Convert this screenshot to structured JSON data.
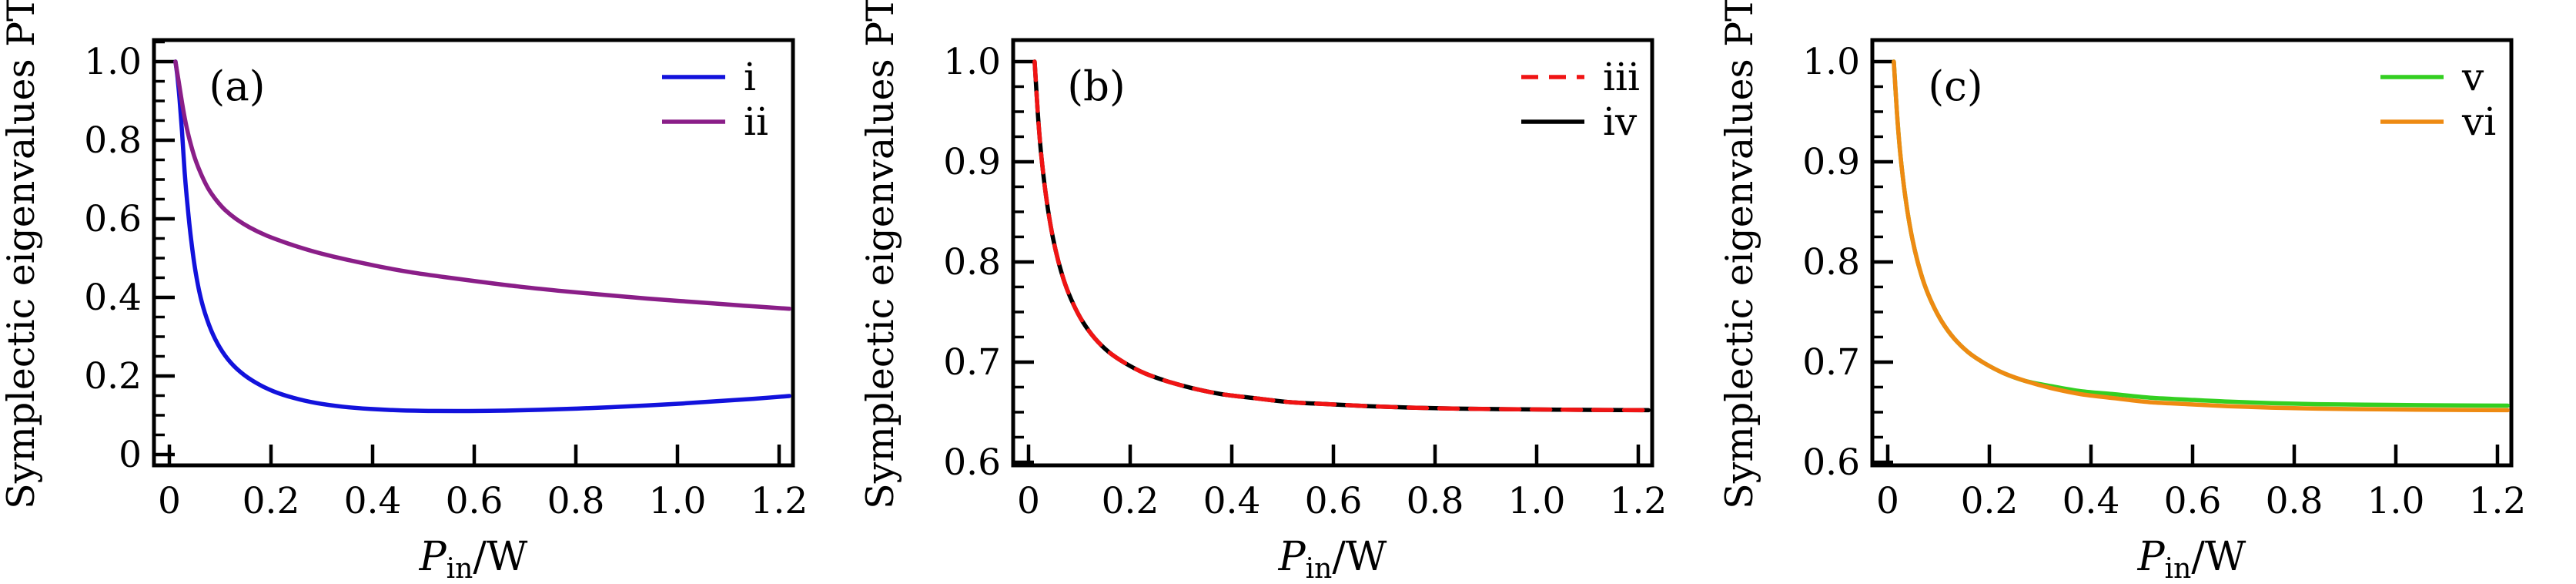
{
  "figure": {
    "background": "#ffffff",
    "axis_color": "#000000",
    "ylabel": "Symplectic eigenvalues PT",
    "xlabel": {
      "var": "P",
      "sub": "in",
      "rest": "/W"
    }
  },
  "chart_data": [
    {
      "type": "line",
      "panel_label": "(a)",
      "title": "",
      "xlabel": "P_in/W",
      "ylabel": "Symplectic eigenvalues PT",
      "xlim": [
        -0.0303,
        1.2273
      ],
      "ylim": [
        -0.0275,
        1.0549
      ],
      "xticks": [
        0,
        0.2,
        0.4,
        0.6,
        0.8,
        1.0,
        1.2
      ],
      "xtick_labels": [
        "0",
        "0.2",
        "0.4",
        "0.6",
        "0.8",
        "1.0",
        "1.2"
      ],
      "yticks": [
        0,
        0.2,
        0.4,
        0.6,
        0.8,
        1.0
      ],
      "ytick_labels": [
        "0",
        "0.2",
        "0.4",
        "0.6",
        "0.8",
        "1.0"
      ],
      "y_minor_step": 0.05,
      "y_minor_range": [
        0,
        1.05
      ],
      "grid": false,
      "legend_position": "top-right",
      "series": [
        {
          "name": "i",
          "color": "#1212dc",
          "dash": null,
          "z": 1,
          "points": [
            [
              0.012,
              1.0
            ],
            [
              0.016,
              0.96
            ],
            [
              0.02,
              0.905
            ],
            [
              0.025,
              0.82
            ],
            [
              0.03,
              0.72
            ],
            [
              0.036,
              0.63
            ],
            [
              0.043,
              0.545
            ],
            [
              0.052,
              0.462
            ],
            [
              0.063,
              0.392
            ],
            [
              0.078,
              0.33
            ],
            [
              0.095,
              0.282
            ],
            [
              0.115,
              0.243
            ],
            [
              0.14,
              0.21
            ],
            [
              0.17,
              0.183
            ],
            [
              0.205,
              0.161
            ],
            [
              0.245,
              0.144
            ],
            [
              0.29,
              0.131
            ],
            [
              0.34,
              0.122
            ],
            [
              0.395,
              0.116
            ],
            [
              0.455,
              0.1125
            ],
            [
              0.52,
              0.111
            ],
            [
              0.59,
              0.1108
            ],
            [
              0.66,
              0.1118
            ],
            [
              0.73,
              0.1138
            ],
            [
              0.8,
              0.1168
            ],
            [
              0.87,
              0.1205
            ],
            [
              0.94,
              0.125
            ],
            [
              1.01,
              0.13
            ],
            [
              1.08,
              0.136
            ],
            [
              1.15,
              0.142
            ],
            [
              1.22,
              0.149
            ]
          ]
        },
        {
          "name": "ii",
          "color": "#8a1e88",
          "dash": null,
          "z": 2,
          "points": [
            [
              0.012,
              1.0
            ],
            [
              0.018,
              0.952
            ],
            [
              0.025,
              0.895
            ],
            [
              0.032,
              0.845
            ],
            [
              0.04,
              0.8
            ],
            [
              0.05,
              0.755
            ],
            [
              0.062,
              0.715
            ],
            [
              0.076,
              0.678
            ],
            [
              0.092,
              0.648
            ],
            [
              0.11,
              0.622
            ],
            [
              0.132,
              0.599
            ],
            [
              0.158,
              0.578
            ],
            [
              0.19,
              0.558
            ],
            [
              0.225,
              0.541
            ],
            [
              0.265,
              0.524
            ],
            [
              0.31,
              0.508
            ],
            [
              0.36,
              0.493
            ],
            [
              0.415,
              0.478
            ],
            [
              0.475,
              0.464
            ],
            [
              0.54,
              0.452
            ],
            [
              0.61,
              0.44
            ],
            [
              0.685,
              0.428
            ],
            [
              0.765,
              0.417
            ],
            [
              0.85,
              0.407
            ],
            [
              0.94,
              0.397
            ],
            [
              1.035,
              0.388
            ],
            [
              1.13,
              0.379
            ],
            [
              1.22,
              0.371
            ]
          ]
        }
      ]
    },
    {
      "type": "line",
      "panel_label": "(b)",
      "title": "",
      "xlabel": "P_in/W",
      "ylabel": "Symplectic eigenvalues PT",
      "xlim": [
        -0.0303,
        1.2273
      ],
      "ylim": [
        0.5969,
        1.0215
      ],
      "xticks": [
        0,
        0.2,
        0.4,
        0.6,
        0.8,
        1.0,
        1.2
      ],
      "xtick_labels": [
        "0",
        "0.2",
        "0.4",
        "0.6",
        "0.8",
        "1.0",
        "1.2"
      ],
      "yticks": [
        0.6,
        0.7,
        0.8,
        0.9,
        1.0
      ],
      "ytick_labels": [
        "0.6",
        "0.7",
        "0.8",
        "0.9",
        "1.0"
      ],
      "y_minor_step": 0.025,
      "y_minor_range": [
        0.6,
        1.0
      ],
      "grid": false,
      "legend_position": "top-right",
      "series": [
        {
          "name": "iii",
          "color": "#f01414",
          "dash": "24 16",
          "z": 2,
          "points": [
            [
              0.012,
              1.0
            ],
            [
              0.018,
              0.95
            ],
            [
              0.024,
              0.912
            ],
            [
              0.031,
              0.879
            ],
            [
              0.039,
              0.85
            ],
            [
              0.048,
              0.824
            ],
            [
              0.059,
              0.8
            ],
            [
              0.072,
              0.778
            ],
            [
              0.088,
              0.758
            ],
            [
              0.107,
              0.74
            ],
            [
              0.13,
              0.724
            ],
            [
              0.158,
              0.71
            ],
            [
              0.19,
              0.699
            ],
            [
              0.228,
              0.689
            ],
            [
              0.272,
              0.681
            ],
            [
              0.322,
              0.674
            ],
            [
              0.38,
              0.668
            ],
            [
              0.445,
              0.664
            ],
            [
              0.515,
              0.66
            ],
            [
              0.59,
              0.658
            ],
            [
              0.67,
              0.656
            ],
            [
              0.755,
              0.6545
            ],
            [
              0.845,
              0.6535
            ],
            [
              0.94,
              0.653
            ],
            [
              1.04,
              0.6525
            ],
            [
              1.13,
              0.6522
            ],
            [
              1.22,
              0.652
            ]
          ]
        },
        {
          "name": "iv",
          "color": "#000000",
          "dash": null,
          "z": 1,
          "points": [
            [
              0.012,
              1.0
            ],
            [
              0.018,
              0.95
            ],
            [
              0.024,
              0.912
            ],
            [
              0.031,
              0.879
            ],
            [
              0.039,
              0.85
            ],
            [
              0.048,
              0.824
            ],
            [
              0.059,
              0.8
            ],
            [
              0.072,
              0.778
            ],
            [
              0.088,
              0.758
            ],
            [
              0.107,
              0.74
            ],
            [
              0.13,
              0.724
            ],
            [
              0.158,
              0.71
            ],
            [
              0.19,
              0.699
            ],
            [
              0.228,
              0.689
            ],
            [
              0.272,
              0.681
            ],
            [
              0.322,
              0.674
            ],
            [
              0.38,
              0.668
            ],
            [
              0.445,
              0.664
            ],
            [
              0.515,
              0.66
            ],
            [
              0.59,
              0.658
            ],
            [
              0.67,
              0.656
            ],
            [
              0.755,
              0.6545
            ],
            [
              0.845,
              0.6535
            ],
            [
              0.94,
              0.653
            ],
            [
              1.04,
              0.6525
            ],
            [
              1.13,
              0.6522
            ],
            [
              1.22,
              0.652
            ]
          ]
        }
      ]
    },
    {
      "type": "line",
      "panel_label": "(c)",
      "title": "",
      "xlabel": "P_in/W",
      "ylabel": "Symplectic eigenvalues PT",
      "xlim": [
        -0.0303,
        1.2273
      ],
      "ylim": [
        0.5969,
        1.0215
      ],
      "xticks": [
        0,
        0.2,
        0.4,
        0.6,
        0.8,
        1.0,
        1.2
      ],
      "xtick_labels": [
        "0",
        "0.2",
        "0.4",
        "0.6",
        "0.8",
        "1.0",
        "1.2"
      ],
      "yticks": [
        0.6,
        0.7,
        0.8,
        0.9,
        1.0
      ],
      "ytick_labels": [
        "0.6",
        "0.7",
        "0.8",
        "0.9",
        "1.0"
      ],
      "y_minor_step": 0.025,
      "y_minor_range": [
        0.6,
        1.0
      ],
      "grid": false,
      "legend_position": "top-right",
      "series": [
        {
          "name": "v",
          "color": "#33cf21",
          "dash": null,
          "z": 1,
          "points": [
            [
              0.012,
              1.0
            ],
            [
              0.018,
              0.95
            ],
            [
              0.024,
              0.912
            ],
            [
              0.031,
              0.879
            ],
            [
              0.039,
              0.85
            ],
            [
              0.048,
              0.824
            ],
            [
              0.059,
              0.8
            ],
            [
              0.072,
              0.778
            ],
            [
              0.088,
              0.758
            ],
            [
              0.107,
              0.74
            ],
            [
              0.13,
              0.724
            ],
            [
              0.158,
              0.71
            ],
            [
              0.19,
              0.699
            ],
            [
              0.228,
              0.689
            ],
            [
              0.272,
              0.681
            ],
            [
              0.322,
              0.676
            ],
            [
              0.38,
              0.671
            ],
            [
              0.445,
              0.668
            ],
            [
              0.515,
              0.6645
            ],
            [
              0.59,
              0.6625
            ],
            [
              0.67,
              0.6605
            ],
            [
              0.755,
              0.659
            ],
            [
              0.845,
              0.658
            ],
            [
              0.94,
              0.6575
            ],
            [
              1.04,
              0.657
            ],
            [
              1.13,
              0.6567
            ],
            [
              1.22,
              0.6565
            ]
          ]
        },
        {
          "name": "vi",
          "color": "#ee8a12",
          "dash": null,
          "z": 2,
          "points": [
            [
              0.012,
              1.0
            ],
            [
              0.018,
              0.95
            ],
            [
              0.024,
              0.912
            ],
            [
              0.031,
              0.879
            ],
            [
              0.039,
              0.85
            ],
            [
              0.048,
              0.824
            ],
            [
              0.059,
              0.8
            ],
            [
              0.072,
              0.778
            ],
            [
              0.088,
              0.758
            ],
            [
              0.107,
              0.74
            ],
            [
              0.13,
              0.724
            ],
            [
              0.158,
              0.71
            ],
            [
              0.19,
              0.699
            ],
            [
              0.228,
              0.689
            ],
            [
              0.272,
              0.681
            ],
            [
              0.322,
              0.674
            ],
            [
              0.38,
              0.668
            ],
            [
              0.445,
              0.664
            ],
            [
              0.515,
              0.66
            ],
            [
              0.59,
              0.658
            ],
            [
              0.67,
              0.656
            ],
            [
              0.755,
              0.6545
            ],
            [
              0.845,
              0.6535
            ],
            [
              0.94,
              0.653
            ],
            [
              1.04,
              0.6525
            ],
            [
              1.13,
              0.6522
            ],
            [
              1.22,
              0.652
            ]
          ]
        }
      ]
    }
  ]
}
